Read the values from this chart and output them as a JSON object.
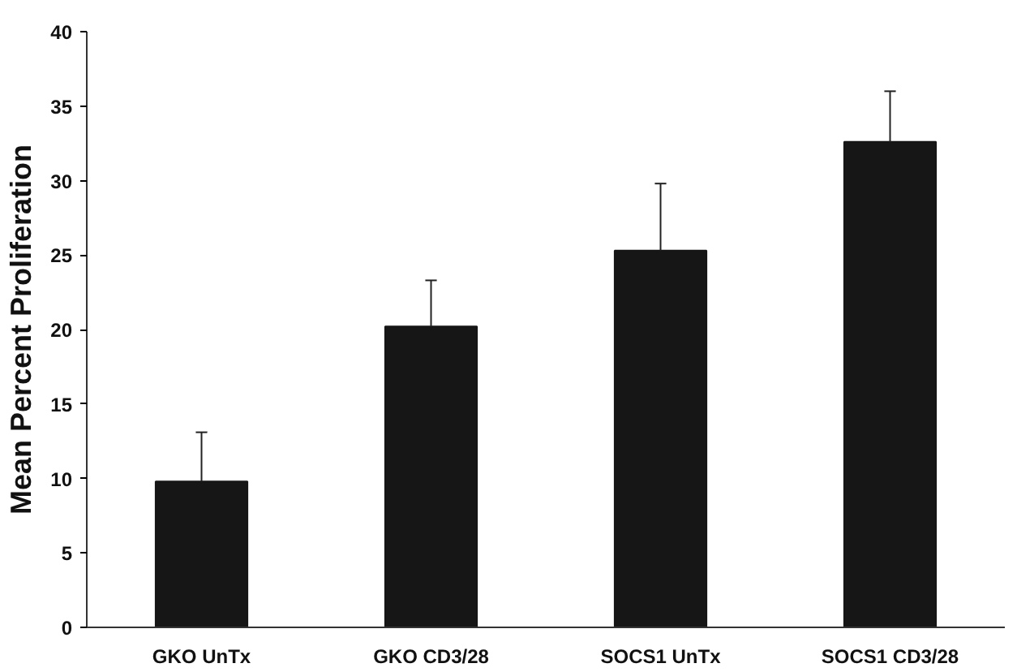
{
  "chart_data": {
    "type": "bar",
    "ylabel": "Mean Percent Proliferation",
    "categories": [
      "GKO UnTx",
      "GKO CD3/28",
      "SOCS1 UnTx",
      "SOCS1 CD3/28"
    ],
    "values": [
      9.8,
      20.2,
      25.3,
      32.6
    ],
    "errors": [
      [
        9.8,
        13.1
      ],
      [
        20.2,
        23.3
      ],
      [
        25.3,
        29.8
      ],
      [
        32.6,
        36.0
      ]
    ],
    "color": "#161616",
    "ylim": [
      0,
      40
    ],
    "yticks": [
      0,
      5,
      10,
      15,
      20,
      25,
      30,
      35,
      40
    ],
    "grid": false
  }
}
